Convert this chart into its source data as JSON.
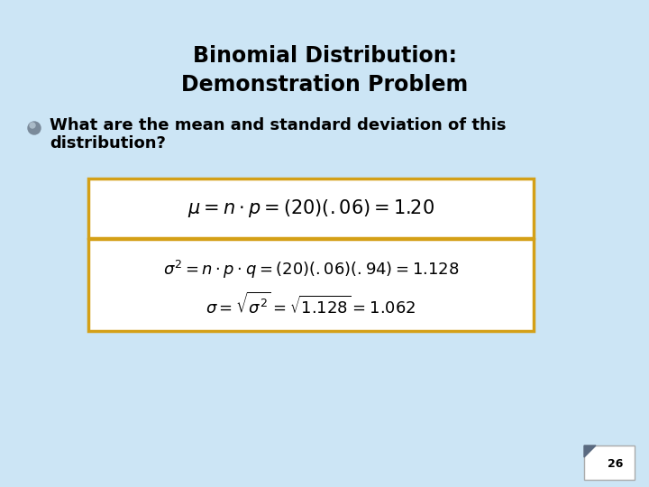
{
  "title_line1": "Binomial Distribution:",
  "title_line2": "Demonstration Problem",
  "background_color": "#cce5f5",
  "title_color": "#000000",
  "title_fontsize": 17,
  "bullet_text_line1": "What are the mean and standard deviation of this",
  "bullet_text_line2": "distribution?",
  "bullet_fontsize": 13,
  "box1_formula": "$\\mu = n \\cdot p = (20)(.06) = 1.20$",
  "box2_formula_line1": "$\\sigma^2 = n \\cdot p \\cdot q = (20)(.06)(.94) = 1.128$",
  "box2_formula_line2": "$\\sigma = \\sqrt{\\sigma^2} = \\sqrt{1.128} = 1.062$",
  "box_edge_color": "#d4a017",
  "formula_fontsize": 13,
  "page_number": "26"
}
